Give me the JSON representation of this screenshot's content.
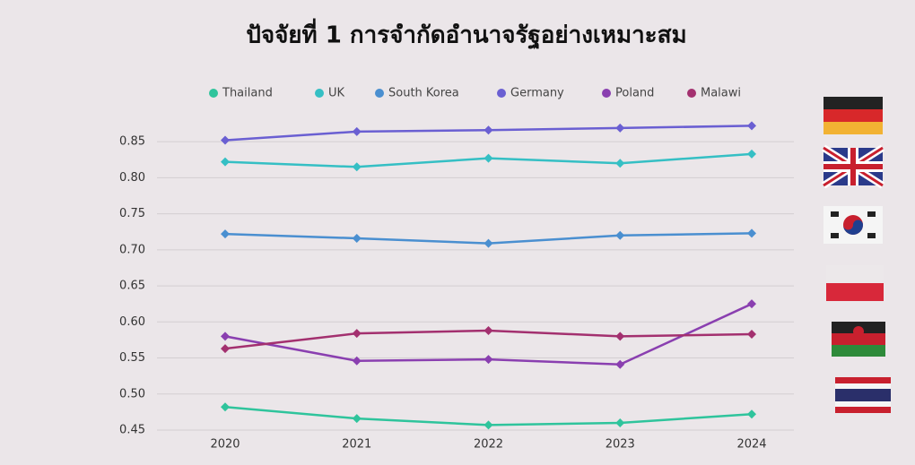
{
  "chart_data": {
    "type": "line",
    "title": "ปัจจัยที่ 1 การจำกัดอำนาจรัฐอย่างเหมาะสม",
    "categories": [
      "2020",
      "2021",
      "2022",
      "2023",
      "2024"
    ],
    "series": [
      {
        "name": "Thailand",
        "color": "#2fc49c",
        "values": [
          0.482,
          0.466,
          0.457,
          0.46,
          0.472
        ]
      },
      {
        "name": "UK",
        "color": "#35bfc4",
        "values": [
          0.822,
          0.815,
          0.827,
          0.82,
          0.833
        ]
      },
      {
        "name": "South Korea",
        "color": "#4a8fd0",
        "values": [
          0.722,
          0.716,
          0.709,
          0.72,
          0.723
        ]
      },
      {
        "name": "Germany",
        "color": "#6a5fd2",
        "values": [
          0.852,
          0.864,
          0.866,
          0.869,
          0.872
        ]
      },
      {
        "name": "Poland",
        "color": "#8a3fb0",
        "values": [
          0.58,
          0.546,
          0.548,
          0.541,
          0.625
        ]
      },
      {
        "name": "Malawi",
        "color": "#a3306f",
        "values": [
          0.563,
          0.584,
          0.588,
          0.58,
          0.583
        ]
      }
    ],
    "ylim": [
      0.45,
      0.88
    ],
    "yticks": [
      0.45,
      {
        "value": 0.5,
        "label": "0.50"
      },
      0.55,
      {
        "value": 0.6,
        "label": "0.60"
      },
      0.65,
      {
        "value": 0.7,
        "label": "0.70"
      },
      0.75,
      {
        "value": 0.8,
        "label": "0.80"
      },
      0.85
    ],
    "grid": true
  }
}
